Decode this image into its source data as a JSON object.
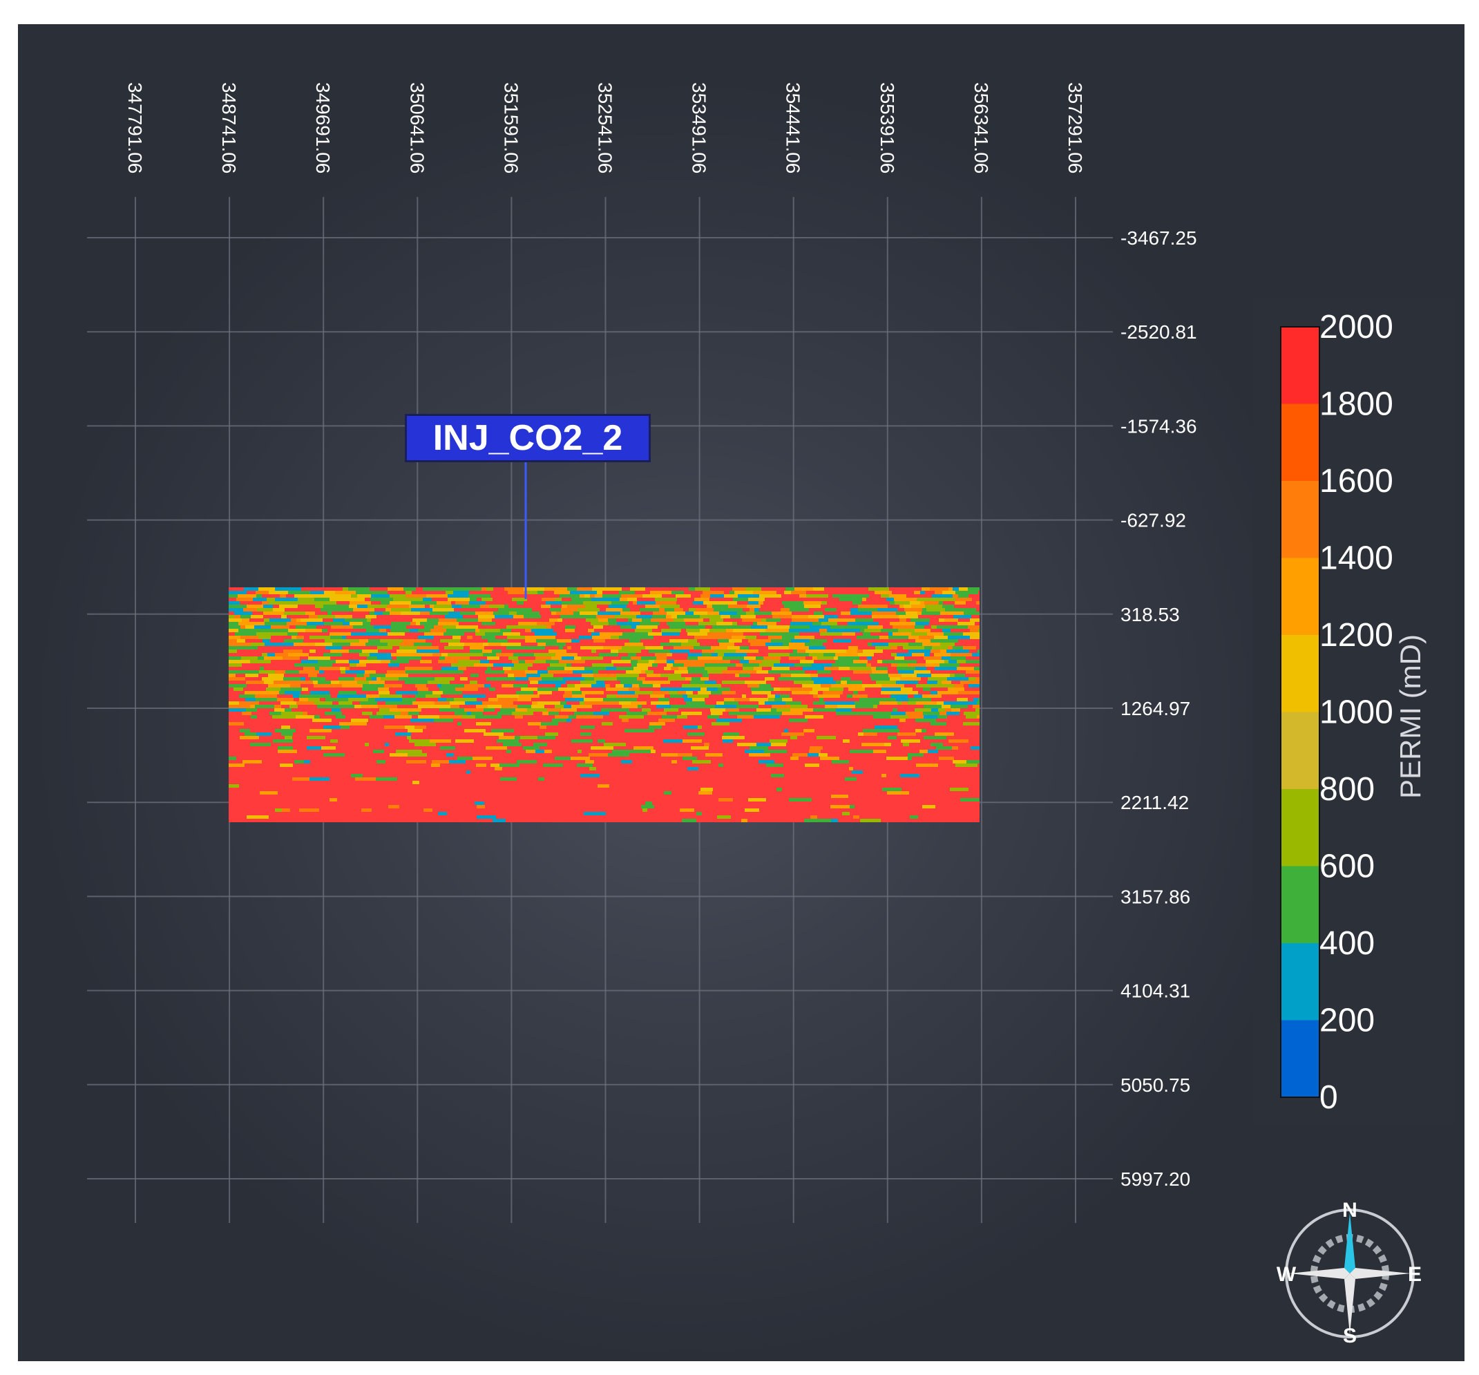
{
  "well": {
    "name": "INJ_CO2_2"
  },
  "x_axis": {
    "ticks": [
      "347791.06",
      "348741.06",
      "349691.06",
      "350641.06",
      "351591.06",
      "352541.06",
      "353491.06",
      "354441.06",
      "355391.06",
      "356341.06",
      "357291.06"
    ]
  },
  "y_axis": {
    "ticks": [
      "-3467.25",
      "-2520.81",
      "-1574.36",
      "-627.92",
      "318.53",
      "1264.97",
      "2211.42",
      "3157.86",
      "4104.31",
      "5050.75",
      "5997.20"
    ]
  },
  "colorbar": {
    "title": "PERMI (mD)",
    "labels": [
      "2000",
      "1800",
      "1600",
      "1400",
      "1200",
      "1000",
      "800",
      "600",
      "400",
      "200",
      "0"
    ],
    "colors": [
      "#ff2b2b",
      "#ff5a00",
      "#ff7d0a",
      "#ffa000",
      "#f0c000",
      "#d4b82c",
      "#9ab800",
      "#3fb03a",
      "#00a0c8",
      "#0064d2"
    ]
  },
  "compass": {
    "n": "N",
    "e": "E",
    "s": "S",
    "w": "W"
  },
  "colors": {
    "background": "#2b2f38",
    "well_label_bg": "#2633d6",
    "well_line": "#3a5cff"
  }
}
